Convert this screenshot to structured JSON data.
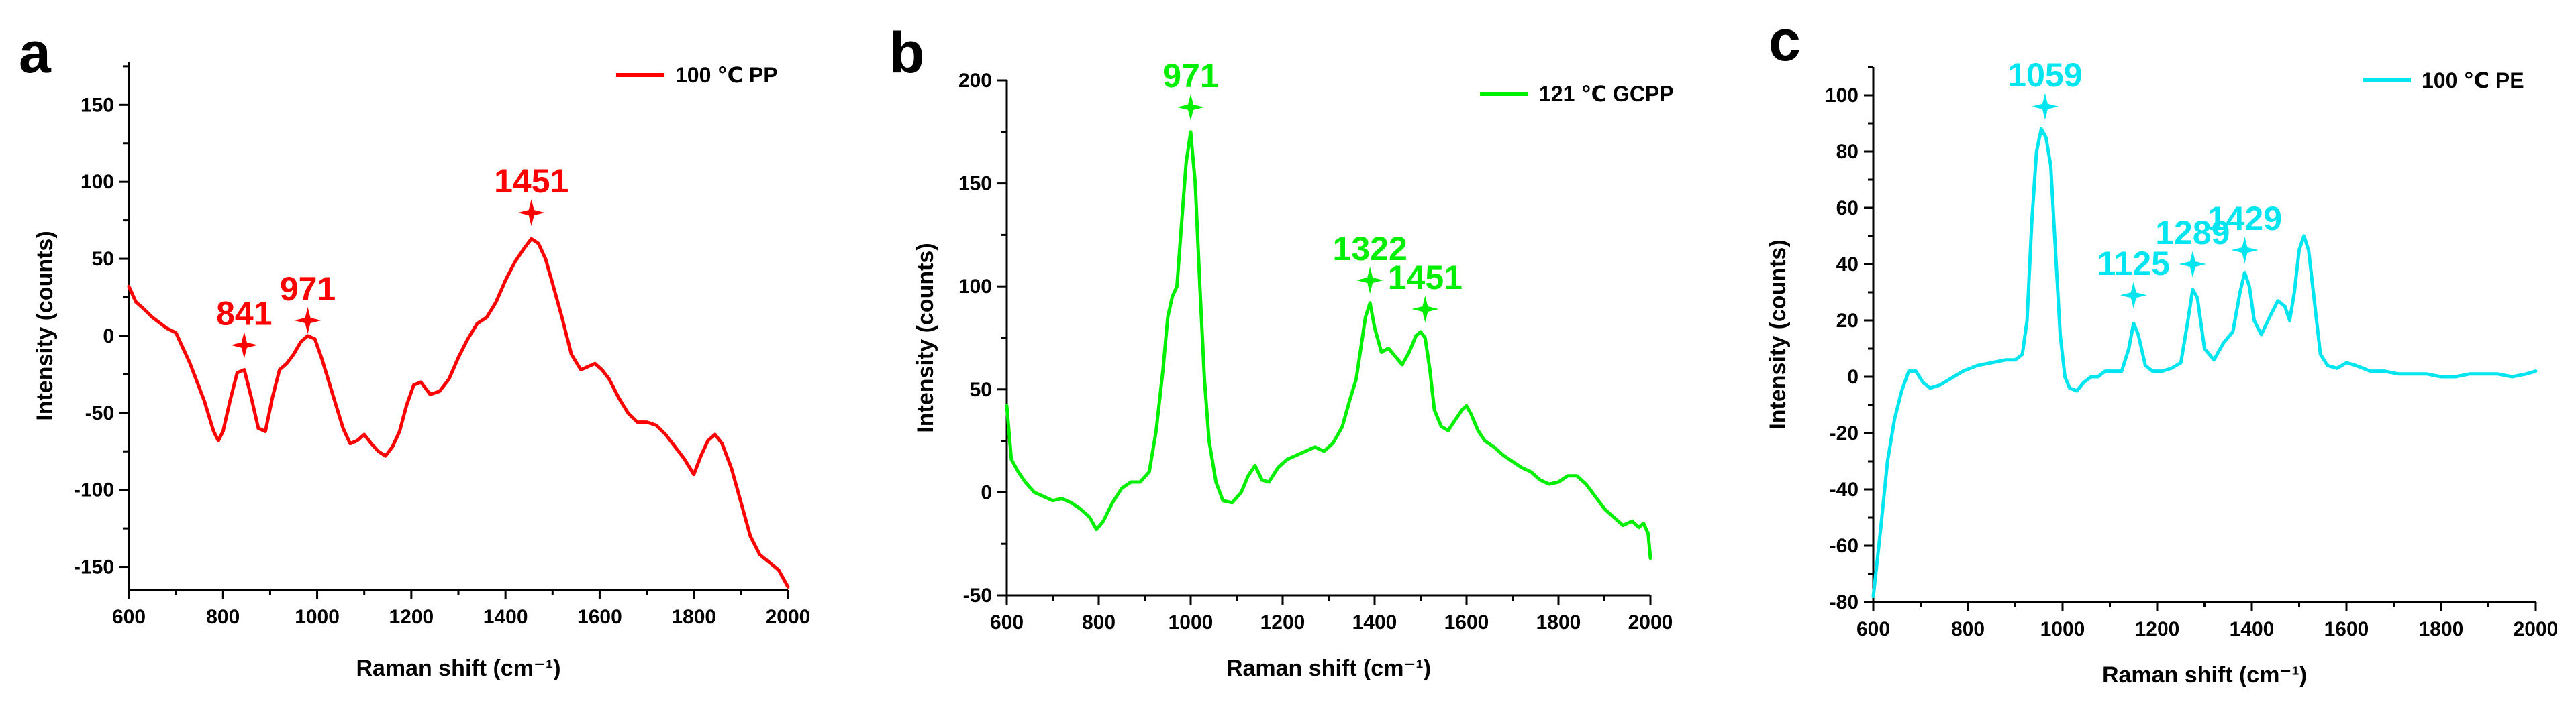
{
  "chart_data": [
    {
      "panel_letter": "a",
      "type": "line",
      "legend": "100 ℃ PP",
      "color": "#ff0000",
      "xlabel": "Raman shift (cm⁻¹)",
      "ylabel": "Intensity (counts)",
      "xlim": [
        600,
        2000
      ],
      "ylim": [
        -165,
        178
      ],
      "xticks": [
        600,
        800,
        1000,
        1200,
        1400,
        1600,
        1800,
        2000
      ],
      "yticks": [
        -150,
        -100,
        -50,
        0,
        50,
        100,
        150
      ],
      "x": [
        600,
        615,
        630,
        650,
        680,
        700,
        730,
        760,
        780,
        790,
        800,
        815,
        830,
        845,
        860,
        875,
        890,
        905,
        920,
        935,
        950,
        965,
        980,
        995,
        1010,
        1025,
        1040,
        1055,
        1070,
        1085,
        1100,
        1115,
        1130,
        1145,
        1160,
        1175,
        1190,
        1205,
        1220,
        1240,
        1260,
        1280,
        1300,
        1320,
        1340,
        1360,
        1380,
        1400,
        1420,
        1440,
        1455,
        1470,
        1485,
        1500,
        1520,
        1540,
        1560,
        1575,
        1590,
        1605,
        1620,
        1640,
        1660,
        1680,
        1700,
        1720,
        1740,
        1760,
        1780,
        1800,
        1815,
        1830,
        1845,
        1860,
        1880,
        1900,
        1920,
        1940,
        1960,
        1980,
        2000
      ],
      "y": [
        32,
        22,
        18,
        12,
        5,
        2,
        -18,
        -42,
        -62,
        -68,
        -62,
        -42,
        -24,
        -22,
        -40,
        -60,
        -62,
        -40,
        -22,
        -18,
        -12,
        -4,
        0,
        -2,
        -15,
        -30,
        -45,
        -60,
        -70,
        -68,
        -64,
        -70,
        -75,
        -78,
        -72,
        -62,
        -45,
        -32,
        -30,
        -38,
        -36,
        -28,
        -14,
        -2,
        8,
        12,
        22,
        36,
        48,
        57,
        63,
        60,
        50,
        34,
        12,
        -12,
        -22,
        -20,
        -18,
        -22,
        -28,
        -40,
        -50,
        -56,
        -56,
        -58,
        -64,
        -72,
        -80,
        -90,
        -78,
        -68,
        -64,
        -70,
        -86,
        -108,
        -130,
        -142,
        -147,
        -152,
        -163
      ],
      "peaks": [
        {
          "label": "841",
          "x": 845,
          "y": -6
        },
        {
          "label": "971",
          "x": 980,
          "y": 10
        },
        {
          "label": "1451",
          "x": 1455,
          "y": 80
        }
      ]
    },
    {
      "panel_letter": "b",
      "type": "line",
      "legend": "121 ℃ GCPP",
      "color": "#00ee00",
      "xlabel": "Raman shift (cm⁻¹)",
      "ylabel": "Intensity (counts)",
      "xlim": [
        600,
        2000
      ],
      "ylim": [
        -50,
        200
      ],
      "xticks": [
        600,
        800,
        1000,
        1200,
        1400,
        1600,
        1800,
        2000
      ],
      "yticks": [
        -50,
        0,
        50,
        100,
        150,
        200
      ],
      "x": [
        600,
        610,
        625,
        640,
        660,
        680,
        700,
        720,
        740,
        760,
        780,
        795,
        810,
        830,
        850,
        870,
        890,
        910,
        925,
        940,
        950,
        960,
        970,
        980,
        990,
        1000,
        1010,
        1020,
        1030,
        1040,
        1055,
        1070,
        1090,
        1110,
        1125,
        1140,
        1155,
        1170,
        1190,
        1210,
        1230,
        1250,
        1270,
        1290,
        1310,
        1330,
        1345,
        1360,
        1370,
        1380,
        1390,
        1400,
        1415,
        1430,
        1445,
        1460,
        1475,
        1490,
        1500,
        1510,
        1520,
        1530,
        1545,
        1560,
        1575,
        1590,
        1600,
        1610,
        1625,
        1640,
        1660,
        1680,
        1700,
        1720,
        1740,
        1760,
        1780,
        1800,
        1820,
        1840,
        1860,
        1880,
        1900,
        1920,
        1940,
        1960,
        1975,
        1985,
        1995,
        2000
      ],
      "y": [
        42,
        16,
        10,
        5,
        0,
        -2,
        -4,
        -3,
        -5,
        -8,
        -12,
        -18,
        -14,
        -5,
        2,
        5,
        5,
        10,
        30,
        60,
        85,
        95,
        100,
        130,
        160,
        175,
        150,
        100,
        55,
        25,
        5,
        -4,
        -5,
        0,
        8,
        13,
        6,
        5,
        12,
        16,
        18,
        20,
        22,
        20,
        24,
        32,
        44,
        55,
        70,
        85,
        92,
        80,
        68,
        70,
        66,
        62,
        68,
        76,
        78,
        75,
        60,
        40,
        32,
        30,
        35,
        40,
        42,
        38,
        30,
        25,
        22,
        18,
        15,
        12,
        10,
        6,
        4,
        5,
        8,
        8,
        4,
        -2,
        -8,
        -12,
        -16,
        -14,
        -17,
        -15,
        -20,
        -32
      ],
      "peaks": [
        {
          "label": "971",
          "x": 1000,
          "y": 187
        },
        {
          "label": "1322",
          "x": 1390,
          "y": 103
        },
        {
          "label": "1451",
          "x": 1510,
          "y": 89
        }
      ]
    },
    {
      "panel_letter": "c",
      "type": "line",
      "legend": "100 ℃ PE",
      "color": "#00e5f0",
      "xlabel": "Raman shift (cm⁻¹)",
      "ylabel": "Intensity (counts)",
      "xlim": [
        600,
        2000
      ],
      "ylim": [
        -80,
        110
      ],
      "xticks": [
        600,
        800,
        1000,
        1200,
        1400,
        1600,
        1800,
        2000
      ],
      "yticks": [
        -80,
        -60,
        -40,
        -20,
        0,
        20,
        40,
        60,
        80,
        100
      ],
      "x": [
        600,
        615,
        630,
        645,
        660,
        675,
        690,
        705,
        720,
        740,
        760,
        790,
        820,
        850,
        880,
        900,
        915,
        925,
        935,
        945,
        955,
        965,
        975,
        985,
        995,
        1005,
        1015,
        1030,
        1045,
        1060,
        1075,
        1090,
        1110,
        1125,
        1140,
        1150,
        1160,
        1175,
        1190,
        1210,
        1230,
        1250,
        1265,
        1275,
        1285,
        1300,
        1320,
        1340,
        1360,
        1375,
        1385,
        1395,
        1405,
        1420,
        1440,
        1455,
        1470,
        1480,
        1490,
        1500,
        1510,
        1520,
        1530,
        1545,
        1560,
        1580,
        1600,
        1620,
        1650,
        1680,
        1710,
        1740,
        1770,
        1800,
        1830,
        1860,
        1890,
        1920,
        1950,
        1980,
        2000
      ],
      "y": [
        -78,
        -55,
        -30,
        -15,
        -5,
        2,
        2,
        -2,
        -4,
        -3,
        -1,
        2,
        4,
        5,
        6,
        6,
        8,
        20,
        55,
        80,
        88,
        85,
        75,
        45,
        15,
        0,
        -4,
        -5,
        -2,
        0,
        0,
        2,
        2,
        2,
        10,
        19,
        15,
        4,
        2,
        2,
        3,
        5,
        20,
        31,
        28,
        10,
        6,
        12,
        16,
        30,
        37,
        32,
        20,
        15,
        22,
        27,
        25,
        20,
        30,
        45,
        50,
        45,
        30,
        8,
        4,
        3,
        5,
        4,
        2,
        2,
        1,
        1,
        1,
        0,
        0,
        1,
        1,
        1,
        0,
        1,
        2
      ],
      "peaks": [
        {
          "label": "1059",
          "x": 963,
          "y": 96
        },
        {
          "label": "1125",
          "x": 1150,
          "y": 29
        },
        {
          "label": "1289",
          "x": 1275,
          "y": 40
        },
        {
          "label": "1429",
          "x": 1385,
          "y": 45
        }
      ]
    }
  ]
}
